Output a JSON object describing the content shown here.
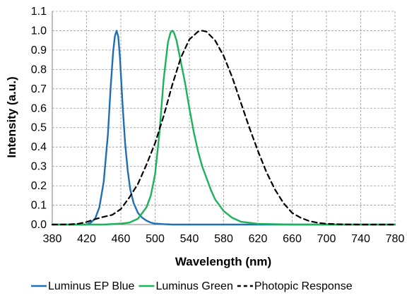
{
  "chart_data": {
    "type": "line",
    "title": "",
    "xlabel": "Wavelength (nm)",
    "ylabel": "Intensity (a.u.)",
    "xlim": [
      380,
      780
    ],
    "ylim": [
      0,
      1.1
    ],
    "xticks": [
      "380",
      "420",
      "460",
      "500",
      "540",
      "580",
      "620",
      "660",
      "700",
      "740",
      "780"
    ],
    "yticks": [
      "0.0",
      "0.1",
      "0.2",
      "0.3",
      "0.4",
      "0.5",
      "0.6",
      "0.7",
      "0.8",
      "0.9",
      "1.0",
      "1.1"
    ],
    "grid": true,
    "legend_position": "bottom",
    "series": [
      {
        "name": "Luminus EP Blue",
        "color": "#1f6fb4",
        "style": "solid",
        "x": [
          380,
          420,
          425,
          430,
          435,
          440,
          445,
          448,
          451,
          453,
          455,
          457,
          459,
          462,
          465,
          468,
          471,
          475,
          480,
          485,
          490,
          495,
          500,
          510,
          520,
          540,
          560,
          600,
          650,
          780
        ],
        "y": [
          0,
          0,
          0.01,
          0.03,
          0.09,
          0.22,
          0.47,
          0.7,
          0.89,
          0.97,
          1.0,
          0.97,
          0.86,
          0.62,
          0.42,
          0.28,
          0.18,
          0.11,
          0.06,
          0.035,
          0.02,
          0.01,
          0.005,
          0.002,
          0,
          0,
          0,
          0,
          0,
          0
        ]
      },
      {
        "name": "Luminus Green",
        "color": "#1db25a",
        "style": "solid",
        "x": [
          380,
          440,
          460,
          470,
          480,
          490,
          495,
          500,
          505,
          510,
          515,
          518,
          520,
          522,
          525,
          530,
          535,
          540,
          545,
          550,
          555,
          560,
          565,
          570,
          580,
          590,
          600,
          620,
          660,
          780
        ],
        "y": [
          0,
          0,
          0.005,
          0.01,
          0.03,
          0.09,
          0.15,
          0.26,
          0.47,
          0.75,
          0.94,
          0.99,
          1.0,
          0.99,
          0.95,
          0.84,
          0.73,
          0.6,
          0.48,
          0.38,
          0.3,
          0.24,
          0.18,
          0.13,
          0.07,
          0.035,
          0.015,
          0.004,
          0,
          0
        ]
      },
      {
        "name": "Photopic Response",
        "color": "#000000",
        "style": "dashed",
        "x": [
          380,
          400,
          410,
          420,
          430,
          440,
          450,
          460,
          470,
          480,
          490,
          500,
          510,
          520,
          530,
          540,
          550,
          555,
          560,
          570,
          580,
          590,
          600,
          610,
          620,
          630,
          640,
          650,
          660,
          670,
          680,
          690,
          700,
          720,
          740,
          780
        ],
        "y": [
          0,
          0.001,
          0.004,
          0.013,
          0.028,
          0.04,
          0.05,
          0.08,
          0.14,
          0.21,
          0.31,
          0.42,
          0.56,
          0.72,
          0.86,
          0.955,
          0.995,
          1.0,
          0.995,
          0.95,
          0.87,
          0.76,
          0.63,
          0.5,
          0.38,
          0.27,
          0.18,
          0.11,
          0.06,
          0.035,
          0.018,
          0.009,
          0.004,
          0.001,
          0,
          0
        ]
      }
    ]
  }
}
